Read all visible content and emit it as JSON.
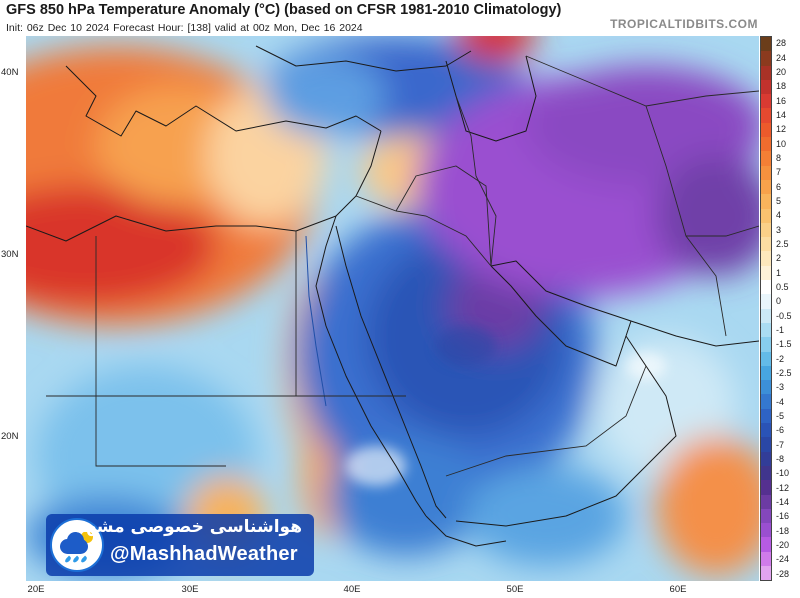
{
  "header": {
    "title": "GFS 850 hPa Temperature Anomaly (°C) (based on CFSR 1981-2010 Climatology)",
    "subtitle": "Init: 06z Dec 10 2024   Forecast Hour: [138]   valid at 00z Mon, Dec 16 2024",
    "site": "TROPICALTIDBITS.COM"
  },
  "map": {
    "lat_labels": [
      "40N",
      "30N",
      "20N"
    ],
    "lon_labels": [
      "20E",
      "30E",
      "40E",
      "50E",
      "60E"
    ]
  },
  "colorbar": {
    "labels": [
      "28",
      "24",
      "20",
      "18",
      "16",
      "14",
      "12",
      "10",
      "8",
      "7",
      "6",
      "5",
      "4",
      "3",
      "2.5",
      "2",
      "1",
      "0.5",
      "0",
      "-0.5",
      "-1",
      "-1.5",
      "-2",
      "-2.5",
      "-3",
      "-4",
      "-5",
      "-6",
      "-7",
      "-8",
      "-10",
      "-12",
      "-14",
      "-16",
      "-18",
      "-20",
      "-24",
      "-28"
    ],
    "colors": [
      "#6b3d1a",
      "#8b3a1e",
      "#a83226",
      "#c2322d",
      "#d93a32",
      "#e5492f",
      "#ec5a2b",
      "#f06c2e",
      "#f47f35",
      "#f6913e",
      "#f8a24b",
      "#f9b45c",
      "#fac26f",
      "#fbd088",
      "#fcdda2",
      "#fde8bc",
      "#fef2d8",
      "#ffffff",
      "#e9f5fb",
      "#cce9f6",
      "#aadcf2",
      "#87cdee",
      "#63bbe8",
      "#47a6e0",
      "#3c8fd8",
      "#3478cf",
      "#2e63c4",
      "#2a53b6",
      "#2a47a6",
      "#323d98",
      "#40358d",
      "#553090",
      "#6c3ba3",
      "#8447bc",
      "#9a4fd0",
      "#b65be3",
      "#d07bea",
      "#e2a4f0"
    ]
  },
  "watermark": {
    "persian_text": "هواشناسی خصوصی مشهد",
    "handle": "@MashhadWeather"
  }
}
